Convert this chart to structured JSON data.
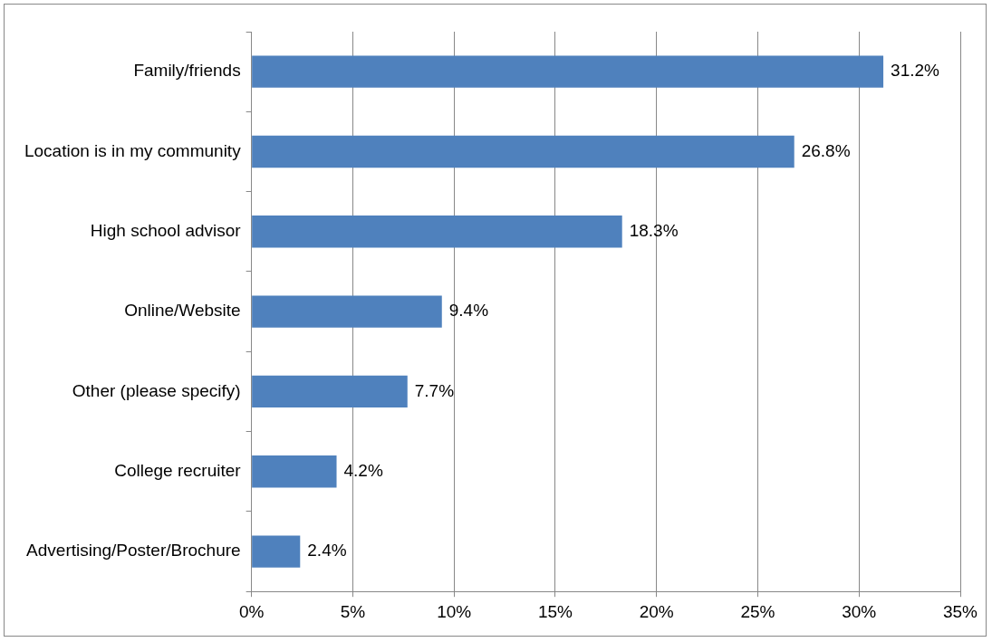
{
  "chart_data": {
    "type": "bar",
    "orientation": "horizontal",
    "categories": [
      "Family/friends",
      "Location is in my community",
      "High school advisor",
      "Online/Website",
      "Other (please specify)",
      "College recruiter",
      "Advertising/Poster/Brochure"
    ],
    "values": [
      31.2,
      26.8,
      18.3,
      9.4,
      7.7,
      4.2,
      2.4
    ],
    "value_labels": [
      "31.2%",
      "26.8%",
      "18.3%",
      "9.4%",
      "7.7%",
      "4.2%",
      "2.4%"
    ],
    "color": "#4f81bd",
    "xlim": [
      0,
      35
    ],
    "xticks": [
      {
        "value": 0,
        "label": "0%"
      },
      {
        "value": 5,
        "label": "5%"
      },
      {
        "value": 10,
        "label": "10%"
      },
      {
        "value": 15,
        "label": "15%"
      },
      {
        "value": 20,
        "label": "20%"
      },
      {
        "value": 25,
        "label": "25%"
      },
      {
        "value": 30,
        "label": "30%"
      },
      {
        "value": 35,
        "label": "35%"
      }
    ],
    "grid": "x",
    "legend": false
  }
}
